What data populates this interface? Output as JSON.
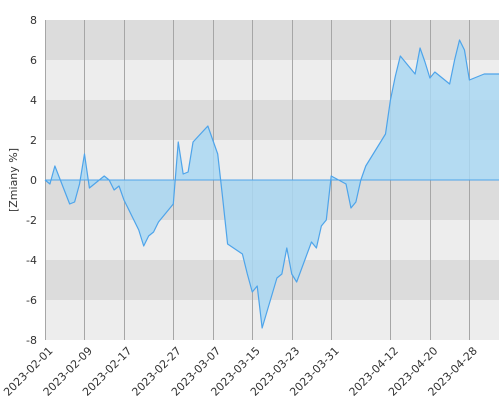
{
  "chart_data": {
    "type": "area",
    "title": "",
    "xlabel": "",
    "ylabel": "[Zmiany %]",
    "ylim": [
      -8,
      8
    ],
    "yticks": [
      -8,
      -6,
      -4,
      -2,
      0,
      2,
      4,
      6,
      8
    ],
    "xlim": [
      "2023-02-01",
      "2023-05-04"
    ],
    "xticks": [
      "2023-02-01",
      "2023-02-09",
      "2023-02-17",
      "2023-02-27",
      "2023-03-07",
      "2023-03-15",
      "2023-03-23",
      "2023-03-31",
      "2023-04-12",
      "2023-04-20",
      "2023-04-28"
    ],
    "grid": true,
    "legend": "none",
    "colors": {
      "line": "#4ea4ea",
      "fill": "#a9d7f2",
      "band_dark": "#dcdcdc",
      "band_light": "#ededed",
      "gridline": "#a6a6a6"
    },
    "series": [
      {
        "x": [
          "2023-02-01",
          "2023-02-02",
          "2023-02-03",
          "2023-02-06",
          "2023-02-07",
          "2023-02-08",
          "2023-02-09",
          "2023-02-10",
          "2023-02-13",
          "2023-02-14",
          "2023-02-15",
          "2023-02-16",
          "2023-02-17",
          "2023-02-20",
          "2023-02-21",
          "2023-02-22",
          "2023-02-23",
          "2023-02-24",
          "2023-02-27",
          "2023-02-28",
          "2023-03-01",
          "2023-03-02",
          "2023-03-03",
          "2023-03-06",
          "2023-03-07",
          "2023-03-08",
          "2023-03-09",
          "2023-03-10",
          "2023-03-13",
          "2023-03-14",
          "2023-03-15",
          "2023-03-16",
          "2023-03-17",
          "2023-03-20",
          "2023-03-21",
          "2023-03-22",
          "2023-03-23",
          "2023-03-24",
          "2023-03-27",
          "2023-03-28",
          "2023-03-29",
          "2023-03-30",
          "2023-03-31",
          "2023-04-03",
          "2023-04-04",
          "2023-04-05",
          "2023-04-06",
          "2023-04-07",
          "2023-04-11",
          "2023-04-12",
          "2023-04-13",
          "2023-04-14",
          "2023-04-17",
          "2023-04-18",
          "2023-04-19",
          "2023-04-20",
          "2023-04-21",
          "2023-04-24",
          "2023-04-25",
          "2023-04-26",
          "2023-04-27",
          "2023-04-28",
          "2023-05-01",
          "2023-05-02",
          "2023-05-03",
          "2023-05-04"
        ],
        "values": [
          0.0,
          -0.2,
          0.7,
          -1.2,
          -1.1,
          -0.2,
          1.3,
          -0.4,
          0.2,
          0.0,
          -0.5,
          -0.3,
          -1.0,
          -2.5,
          -3.3,
          -2.8,
          -2.6,
          -2.1,
          -1.2,
          1.9,
          0.3,
          0.4,
          1.9,
          2.7,
          2.0,
          1.3,
          -0.9,
          -3.2,
          -3.7,
          -4.7,
          -5.6,
          -5.3,
          -7.4,
          -4.9,
          -4.7,
          -3.4,
          -4.7,
          -5.1,
          -3.1,
          -3.4,
          -2.3,
          -2.0,
          0.2,
          -0.2,
          -1.4,
          -1.1,
          0.0,
          0.7,
          2.3,
          4.0,
          5.2,
          6.2,
          5.3,
          6.6,
          5.9,
          5.1,
          5.4,
          4.8,
          6.0,
          7.0,
          6.5,
          5.0,
          5.3,
          5.3,
          5.3,
          5.3
        ]
      }
    ]
  }
}
